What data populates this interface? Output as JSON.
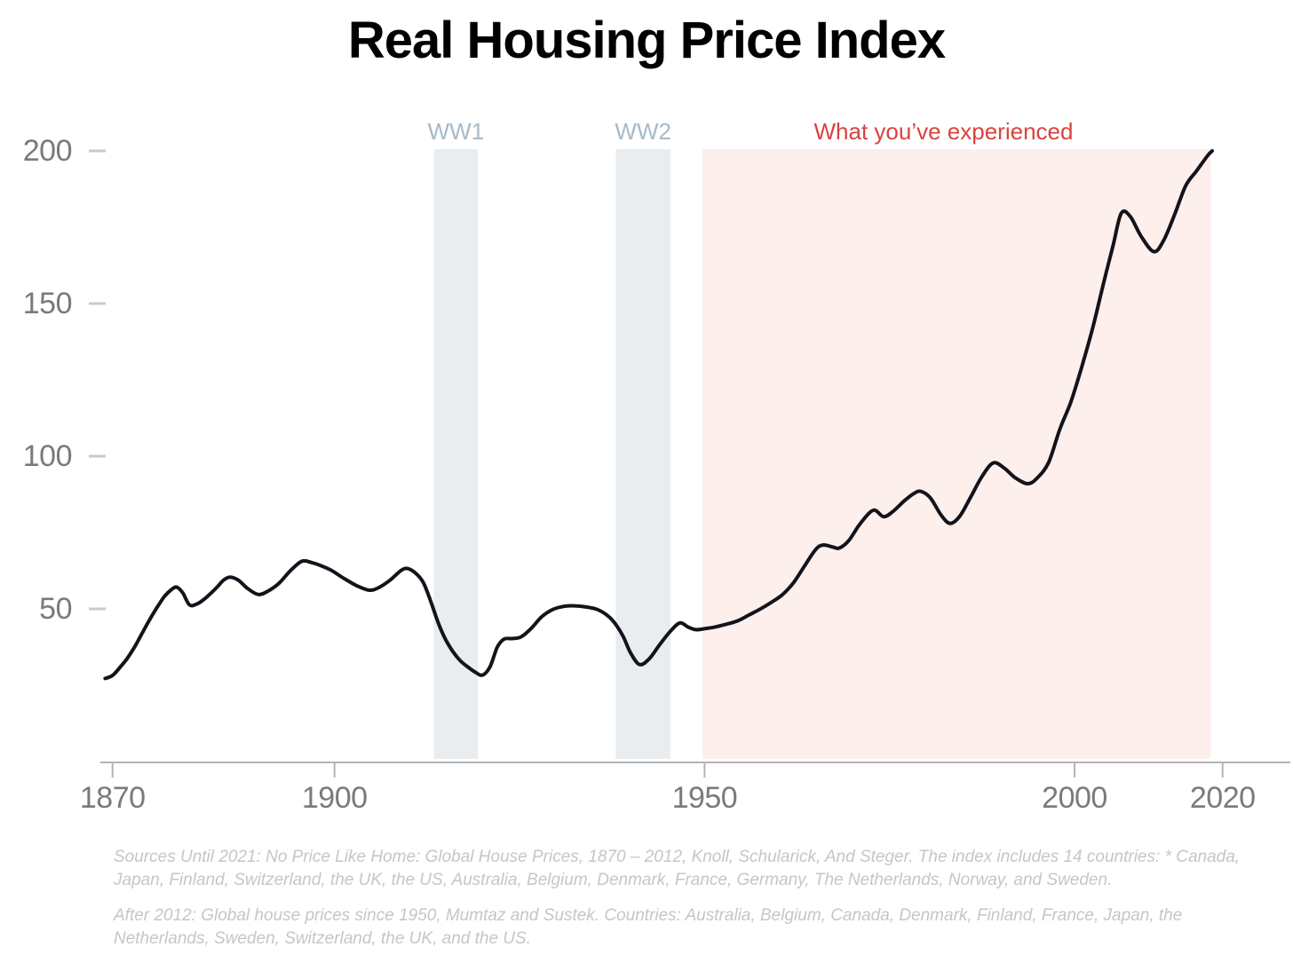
{
  "title": "Real Housing Price Index",
  "sources": [
    "Sources Until 2021: No Price Like Home: Global House Prices, 1870 – 2012, Knoll, Schularick, And Steger. The index includes 14 countries: * Canada, Japan, Finland, Switzerland, the UK, the US, Australia, Belgium, Denmark, France, Germany, The Netherlands, Norway, and Sweden.",
    "After 2012: Global house prices since 1950, Mumtaz and Sustek. Countries: Australia, Belgium, Canada, Denmark, Finland, France, Japan, the Netherlands, Sweden, Switzerland, the UK, and the US."
  ],
  "chart_data": {
    "type": "line",
    "title": "Real Housing Price Index",
    "xlabel": "",
    "ylabel": "",
    "grid": false,
    "legend": "none",
    "x_axis": {
      "ticks": [
        1870,
        1900,
        1950,
        2000,
        2020
      ],
      "range": [
        1869,
        2021
      ]
    },
    "y_axis": {
      "ticks": [
        50,
        100,
        150,
        200
      ],
      "range": [
        0,
        210
      ]
    },
    "annotations": [
      {
        "id": "ww1",
        "label": "WW1",
        "start": 1913.4,
        "end": 1919.4,
        "fill": "#e9edef",
        "label_color": "#a6bac7",
        "kind": "war"
      },
      {
        "id": "ww2",
        "label": "WW2",
        "start": 1938.0,
        "end": 1945.4,
        "fill": "#e9edef",
        "label_color": "#a6bac7",
        "kind": "war"
      },
      {
        "id": "experienced",
        "label": "What you’ve experienced",
        "start": 1949.7,
        "end": 2018.4,
        "fill": "#fdefec",
        "label_color": "#d8443e",
        "kind": "highlight",
        "label_center": 1982.3
      }
    ],
    "colors": {
      "line": "#13131b",
      "axis": "#b4b4b4",
      "tick_label": "#7a7a7a",
      "y_dash": "#c9c9c9",
      "source_text": "#c6c6c6",
      "title": "#000000",
      "background": "#ffffff"
    },
    "series": [
      {
        "name": "Real Housing Price Index",
        "points": [
          [
            1869,
            27.2
          ],
          [
            1870,
            28.2
          ],
          [
            1871,
            30.8
          ],
          [
            1872,
            33.8
          ],
          [
            1873,
            37.6
          ],
          [
            1874,
            42
          ],
          [
            1875,
            46.4
          ],
          [
            1876,
            50.4
          ],
          [
            1877,
            54
          ],
          [
            1878,
            56.4
          ],
          [
            1878.7,
            57.1
          ],
          [
            1879.5,
            55.2
          ],
          [
            1880.4,
            51.3
          ],
          [
            1881.4,
            51.6
          ],
          [
            1882.5,
            53.4
          ],
          [
            1884,
            56.8
          ],
          [
            1885,
            59.4
          ],
          [
            1885.9,
            60.4
          ],
          [
            1887,
            59.4
          ],
          [
            1888.3,
            56.6
          ],
          [
            1889.7,
            54.7
          ],
          [
            1891,
            55.8
          ],
          [
            1892.5,
            58.4
          ],
          [
            1894,
            62.4
          ],
          [
            1895.6,
            65.6
          ],
          [
            1897,
            65.1
          ],
          [
            1898.2,
            64.1
          ],
          [
            1899.5,
            62.7
          ],
          [
            1901.2,
            60.1
          ],
          [
            1903,
            57.6
          ],
          [
            1904.7,
            56.1
          ],
          [
            1906,
            57
          ],
          [
            1907.5,
            59.4
          ],
          [
            1909,
            62.6
          ],
          [
            1909.9,
            63.2
          ],
          [
            1911,
            61.6
          ],
          [
            1912,
            58.6
          ],
          [
            1913,
            52.5
          ],
          [
            1914,
            45.5
          ],
          [
            1915,
            40
          ],
          [
            1916,
            36
          ],
          [
            1917,
            33
          ],
          [
            1918,
            31
          ],
          [
            1919,
            29.3
          ],
          [
            1920,
            28.3
          ],
          [
            1921,
            31
          ],
          [
            1922,
            37.5
          ],
          [
            1922.9,
            40.1
          ],
          [
            1924,
            40.3
          ],
          [
            1925.2,
            40.8
          ],
          [
            1926.5,
            43.4
          ],
          [
            1928,
            47.4
          ],
          [
            1929.5,
            49.8
          ],
          [
            1931,
            50.8
          ],
          [
            1932.5,
            51
          ],
          [
            1934,
            50.6
          ],
          [
            1935.5,
            49.8
          ],
          [
            1937,
            47.6
          ],
          [
            1938,
            44.9
          ],
          [
            1939,
            41
          ],
          [
            1940,
            35.6
          ],
          [
            1941.2,
            31.8
          ],
          [
            1942.5,
            33.6
          ],
          [
            1944,
            38.5
          ],
          [
            1945.5,
            43
          ],
          [
            1946.7,
            45.4
          ],
          [
            1947.8,
            44
          ],
          [
            1948.8,
            43.2
          ],
          [
            1950,
            43.5
          ],
          [
            1951.5,
            44.1
          ],
          [
            1953,
            45
          ],
          [
            1954.5,
            46.1
          ],
          [
            1956,
            48
          ],
          [
            1957.5,
            49.9
          ],
          [
            1959,
            52.1
          ],
          [
            1960.5,
            54.6
          ],
          [
            1962,
            58.5
          ],
          [
            1963.5,
            64
          ],
          [
            1965,
            69.4
          ],
          [
            1966,
            70.9
          ],
          [
            1967.4,
            70.2
          ],
          [
            1968.2,
            69.9
          ],
          [
            1969.5,
            72.4
          ],
          [
            1971,
            77.8
          ],
          [
            1972.8,
            82.3
          ],
          [
            1974.2,
            80.2
          ],
          [
            1975.5,
            82
          ],
          [
            1977,
            85.4
          ],
          [
            1978.3,
            87.8
          ],
          [
            1979.2,
            88.5
          ],
          [
            1980.5,
            86.4
          ],
          [
            1982,
            80.6
          ],
          [
            1983.2,
            78
          ],
          [
            1984.5,
            80.4
          ],
          [
            1986,
            86.8
          ],
          [
            1987.5,
            93.4
          ],
          [
            1989,
            97.8
          ],
          [
            1990.5,
            96.1
          ],
          [
            1992,
            92.9
          ],
          [
            1993.7,
            91
          ],
          [
            1995,
            93
          ],
          [
            1996.5,
            98
          ],
          [
            1998,
            108.8
          ],
          [
            1999.5,
            117.8
          ],
          [
            2001,
            129.5
          ],
          [
            2002.5,
            142.5
          ],
          [
            2004,
            157.5
          ],
          [
            2005.2,
            169
          ],
          [
            2006.3,
            179.5
          ],
          [
            2007.5,
            178.6
          ],
          [
            2009,
            172
          ],
          [
            2010.7,
            167
          ],
          [
            2012,
            170.5
          ],
          [
            2013.5,
            179
          ],
          [
            2015,
            188.5
          ],
          [
            2016.5,
            193.5
          ],
          [
            2018,
            198.5
          ],
          [
            2018.6,
            200
          ]
        ]
      }
    ]
  }
}
